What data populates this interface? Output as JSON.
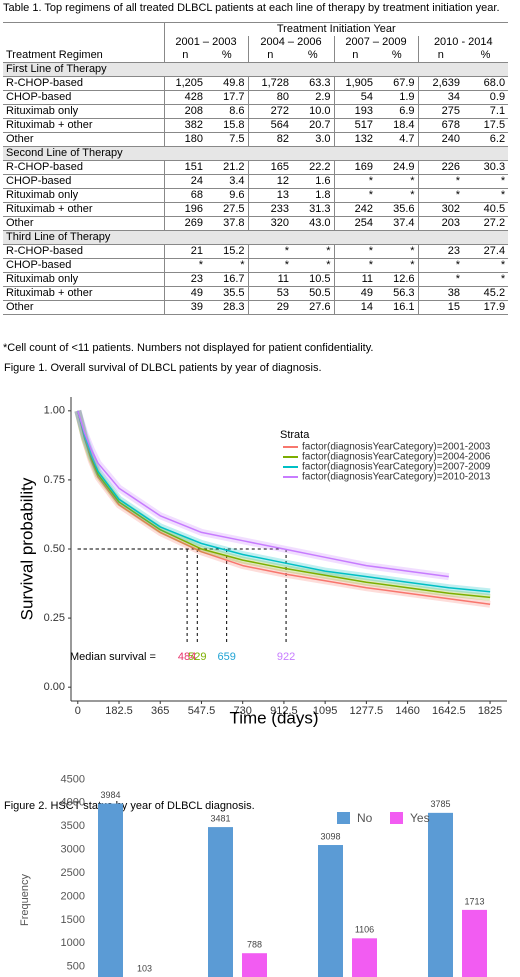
{
  "table": {
    "caption": "Table 1. Top regimens of all treated DLBCL patients at each line of therapy by treatment initiation year.",
    "header": {
      "group": "Treatment Initiation Year",
      "first_column": "Treatment Regimen",
      "years": [
        "2001 – 2003",
        "2004 – 2006",
        "2007 – 2009",
        "2010 - 2014"
      ],
      "subheads": [
        "n",
        "%"
      ]
    },
    "sections": [
      {
        "title": "First Line of Therapy",
        "rows": [
          [
            "R-CHOP-based",
            "1,205",
            "49.8",
            "1,728",
            "63.3",
            "1,905",
            "67.9",
            "2,639",
            "68.0"
          ],
          [
            "CHOP-based",
            "428",
            "17.7",
            "80",
            "2.9",
            "54",
            "1.9",
            "34",
            "0.9"
          ],
          [
            "Rituximab only",
            "208",
            "8.6",
            "272",
            "10.0",
            "193",
            "6.9",
            "275",
            "7.1"
          ],
          [
            "Rituximab + other",
            "382",
            "15.8",
            "564",
            "20.7",
            "517",
            "18.4",
            "678",
            "17.5"
          ],
          [
            "Other",
            "180",
            "7.5",
            "82",
            "3.0",
            "132",
            "4.7",
            "240",
            "6.2"
          ]
        ]
      },
      {
        "title": "Second Line of Therapy",
        "rows": [
          [
            "R-CHOP-based",
            "151",
            "21.2",
            "165",
            "22.2",
            "169",
            "24.9",
            "226",
            "30.3"
          ],
          [
            "CHOP-based",
            "24",
            "3.4",
            "12",
            "1.6",
            "*",
            "*",
            "*",
            "*"
          ],
          [
            "Rituximab only",
            "68",
            "9.6",
            "13",
            "1.8",
            "*",
            "*",
            "*",
            "*"
          ],
          [
            "Rituximab + other",
            "196",
            "27.5",
            "233",
            "31.3",
            "242",
            "35.6",
            "302",
            "40.5"
          ],
          [
            "Other",
            "269",
            "37.8",
            "320",
            "43.0",
            "254",
            "37.4",
            "203",
            "27.2"
          ]
        ]
      },
      {
        "title": "Third Line of Therapy",
        "rows": [
          [
            "R-CHOP-based",
            "21",
            "15.2",
            "*",
            "*",
            "*",
            "*",
            "23",
            "27.4"
          ],
          [
            "CHOP-based",
            "*",
            "*",
            "*",
            "*",
            "*",
            "*",
            "*",
            "*"
          ],
          [
            "Rituximab only",
            "23",
            "16.7",
            "11",
            "10.5",
            "11",
            "12.6",
            "*",
            "*"
          ],
          [
            "Rituximab + other",
            "49",
            "35.5",
            "53",
            "50.5",
            "49",
            "56.3",
            "38",
            "45.2"
          ],
          [
            "Other",
            "39",
            "28.3",
            "29",
            "27.6",
            "14",
            "16.1",
            "15",
            "17.9"
          ]
        ]
      }
    ]
  },
  "footnote": "*Cell count of <11 patients. Numbers not displayed for patient confidentiality.",
  "figure1_caption": "Figure 1. Overall survival of DLBCL patients by year of diagnosis.",
  "figure2_caption": "Figure 2. HSCT status by year of DLBCL diagnosis.",
  "chart_data": [
    {
      "type": "line",
      "x_label": "Time (days)",
      "y_label": "Survival probability",
      "legend_title": "Strata",
      "legend": "right",
      "x": [
        0,
        30,
        60,
        90,
        182.5,
        365,
        547.5,
        730,
        912.5,
        1095,
        1277.5,
        1460,
        1642.5,
        1825
      ],
      "series": [
        {
          "name": "factor(diagnosisYearCategory)=2001-2003",
          "color": "#f8766d",
          "values": [
            1,
            0.9,
            0.82,
            0.76,
            0.66,
            0.56,
            0.49,
            0.44,
            0.41,
            0.385,
            0.36,
            0.34,
            0.32,
            0.3
          ]
        },
        {
          "name": "factor(diagnosisYearCategory)=2004-2006",
          "color": "#7cae00",
          "values": [
            1,
            0.9,
            0.83,
            0.77,
            0.67,
            0.57,
            0.5,
            0.46,
            0.43,
            0.405,
            0.38,
            0.36,
            0.34,
            0.325
          ]
        },
        {
          "name": "factor(diagnosisYearCategory)=2007-2009",
          "color": "#00bfc4",
          "values": [
            1,
            0.91,
            0.84,
            0.78,
            0.68,
            0.58,
            0.52,
            0.48,
            0.45,
            0.42,
            0.4,
            0.38,
            0.36,
            0.345
          ]
        },
        {
          "name": "factor(diagnosisYearCategory)=2010-2013",
          "color": "#c77cff",
          "values": [
            1,
            0.92,
            0.86,
            0.81,
            0.72,
            0.62,
            0.56,
            0.53,
            0.5,
            0.47,
            0.44,
            0.42,
            0.4,
            null
          ]
        }
      ],
      "xlim": [
        -30,
        1900
      ],
      "xticks": [
        0,
        182.5,
        365,
        547.5,
        730,
        912.5,
        1095,
        1277.5,
        1460,
        1642.5,
        1825
      ],
      "ylim": [
        -0.05,
        1.05
      ],
      "yticks": [
        {
          "value": 0,
          "label": "0.00"
        },
        {
          "value": 0.25,
          "label": "0.25"
        },
        {
          "value": 0.5,
          "label": "0.50"
        },
        {
          "value": 0.75,
          "label": "0.75"
        },
        {
          "value": 1,
          "label": "1.00"
        }
      ],
      "median_label": "Median survival =",
      "median_line_y": 0.5,
      "medians": [
        {
          "value": 484,
          "color": "#e8336b"
        },
        {
          "value": 529,
          "color": "#7cae00"
        },
        {
          "value": 659,
          "color": "#1fa3d4"
        },
        {
          "value": 922,
          "color": "#c77cff"
        }
      ]
    },
    {
      "type": "bar",
      "y_label": "Frequency",
      "legend": "top",
      "categories": [
        null,
        null,
        null,
        null
      ],
      "series": [
        {
          "name": "No",
          "color": "#5b9bd5",
          "values": [
            3984,
            3481,
            3098,
            3785
          ]
        },
        {
          "name": "Yes",
          "color": "#f25cf2",
          "values": [
            103,
            788,
            1106,
            1713
          ]
        }
      ],
      "ylim": [
        280,
        4700
      ],
      "yticks": [
        500,
        1000,
        1500,
        2000,
        2500,
        3000,
        3500,
        4000,
        4500
      ]
    }
  ]
}
